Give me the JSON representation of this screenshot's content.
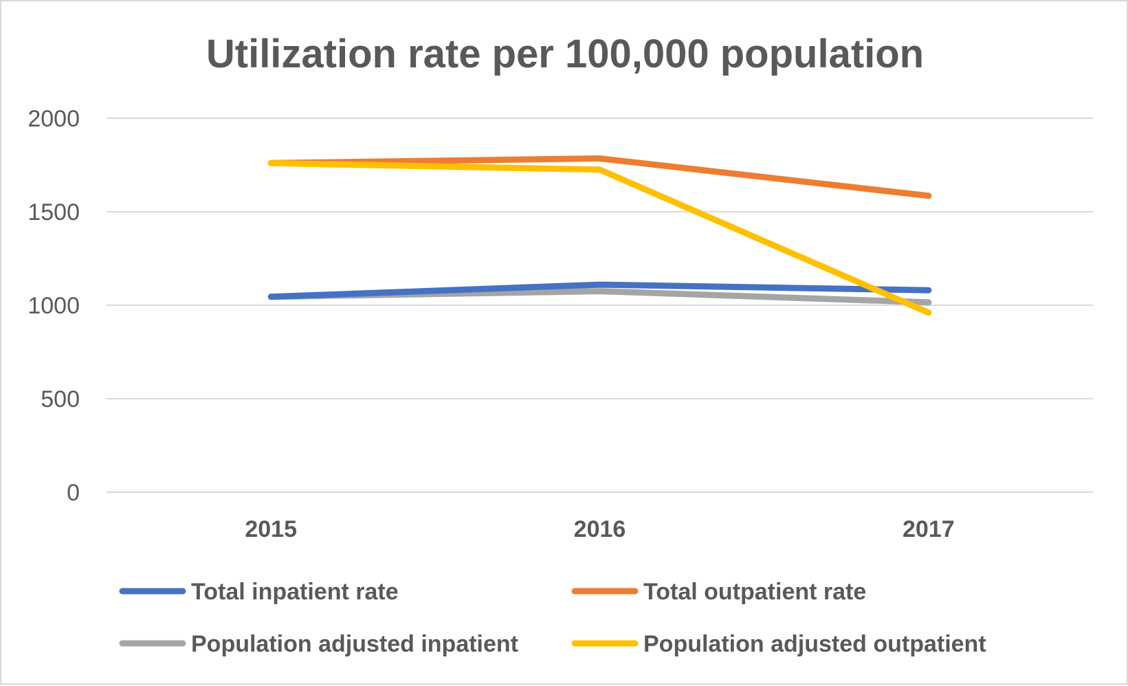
{
  "chart_data": {
    "type": "line",
    "title": "Utilization rate per 100,000 population",
    "xlabel": "",
    "ylabel": "",
    "categories": [
      "2015",
      "2016",
      "2017"
    ],
    "ylim": [
      0,
      2000
    ],
    "yticks": [
      "0",
      "500",
      "1000",
      "1500",
      "2000"
    ],
    "grid": true,
    "legend_position": "bottom",
    "series": [
      {
        "name": "Total inpatient rate",
        "color": "#4472c4",
        "values": [
          1045,
          1110,
          1080
        ]
      },
      {
        "name": "Total outpatient rate",
        "color": "#ed7d31",
        "values": [
          1760,
          1785,
          1585
        ]
      },
      {
        "name": "Population adjusted inpatient",
        "color": "#a5a5a5",
        "values": [
          1045,
          1075,
          1015
        ]
      },
      {
        "name": "Population adjusted outpatient",
        "color": "#ffc000",
        "values": [
          1760,
          1725,
          960
        ]
      }
    ]
  }
}
